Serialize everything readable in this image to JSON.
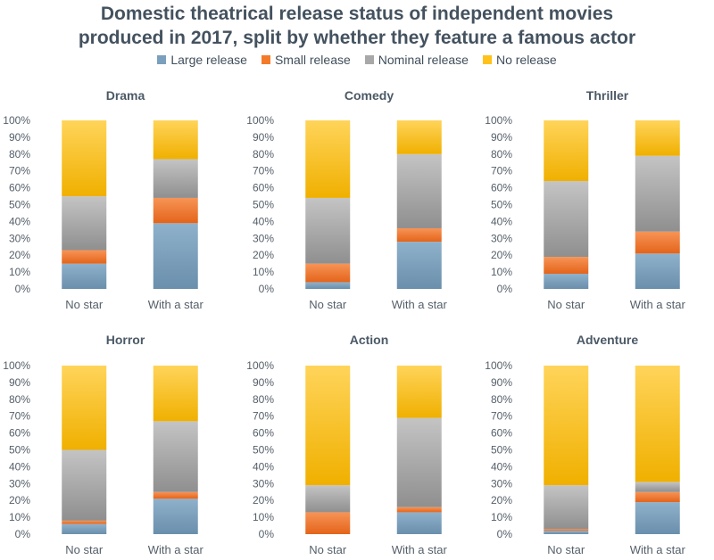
{
  "title_lines": [
    "Domestic theatrical release status of independent movies",
    "produced in 2017, split by whether they feature a famous actor"
  ],
  "legend": [
    {
      "label": "Large release",
      "color": "#7aa0bd"
    },
    {
      "label": "Small release",
      "color": "#f47a2a"
    },
    {
      "label": "Nominal release",
      "color": "#a8a8a8"
    },
    {
      "label": "No release",
      "color": "#ffc21a"
    }
  ],
  "chart_data": [
    {
      "type": "bar",
      "stacked": true,
      "title": "Drama",
      "categories": [
        "No star",
        "With a star"
      ],
      "yticks": [
        "0%",
        "10%",
        "20%",
        "30%",
        "40%",
        "50%",
        "60%",
        "70%",
        "80%",
        "90%",
        "100%"
      ],
      "ylim": [
        0,
        100
      ],
      "series": [
        {
          "name": "Large release",
          "values": [
            15,
            39
          ]
        },
        {
          "name": "Small release",
          "values": [
            8,
            15
          ]
        },
        {
          "name": "Nominal release",
          "values": [
            32,
            23
          ]
        },
        {
          "name": "No release",
          "values": [
            45,
            23
          ]
        }
      ]
    },
    {
      "type": "bar",
      "stacked": true,
      "title": "Comedy",
      "categories": [
        "No star",
        "With a star"
      ],
      "yticks": [
        "0%",
        "10%",
        "20%",
        "30%",
        "40%",
        "50%",
        "60%",
        "70%",
        "80%",
        "90%",
        "100%"
      ],
      "ylim": [
        0,
        100
      ],
      "series": [
        {
          "name": "Large release",
          "values": [
            4,
            28
          ]
        },
        {
          "name": "Small release",
          "values": [
            11,
            8
          ]
        },
        {
          "name": "Nominal release",
          "values": [
            39,
            44
          ]
        },
        {
          "name": "No release",
          "values": [
            46,
            20
          ]
        }
      ]
    },
    {
      "type": "bar",
      "stacked": true,
      "title": "Thriller",
      "categories": [
        "No star",
        "With a star"
      ],
      "yticks": [
        "0%",
        "10%",
        "20%",
        "30%",
        "40%",
        "50%",
        "60%",
        "70%",
        "80%",
        "90%",
        "100%"
      ],
      "ylim": [
        0,
        100
      ],
      "series": [
        {
          "name": "Large release",
          "values": [
            9,
            21
          ]
        },
        {
          "name": "Small release",
          "values": [
            10,
            13
          ]
        },
        {
          "name": "Nominal release",
          "values": [
            45,
            45
          ]
        },
        {
          "name": "No release",
          "values": [
            36,
            21
          ]
        }
      ]
    },
    {
      "type": "bar",
      "stacked": true,
      "title": "Horror",
      "categories": [
        "No star",
        "With a star"
      ],
      "yticks": [
        "0%",
        "10%",
        "20%",
        "30%",
        "40%",
        "50%",
        "60%",
        "70%",
        "80%",
        "90%",
        "100%"
      ],
      "ylim": [
        0,
        100
      ],
      "series": [
        {
          "name": "Large release",
          "values": [
            6,
            21
          ]
        },
        {
          "name": "Small release",
          "values": [
            2,
            4
          ]
        },
        {
          "name": "Nominal release",
          "values": [
            42,
            42
          ]
        },
        {
          "name": "No release",
          "values": [
            50,
            33
          ]
        }
      ]
    },
    {
      "type": "bar",
      "stacked": true,
      "title": "Action",
      "categories": [
        "No star",
        "With a star"
      ],
      "yticks": [
        "0%",
        "10%",
        "20%",
        "30%",
        "40%",
        "50%",
        "60%",
        "70%",
        "80%",
        "90%",
        "100%"
      ],
      "ylim": [
        0,
        100
      ],
      "series": [
        {
          "name": "Large release",
          "values": [
            0,
            13
          ]
        },
        {
          "name": "Small release",
          "values": [
            13,
            3
          ]
        },
        {
          "name": "Nominal release",
          "values": [
            16,
            53
          ]
        },
        {
          "name": "No release",
          "values": [
            71,
            31
          ]
        }
      ]
    },
    {
      "type": "bar",
      "stacked": true,
      "title": "Adventure",
      "categories": [
        "No star",
        "With a star"
      ],
      "yticks": [
        "0%",
        "10%",
        "20%",
        "30%",
        "40%",
        "50%",
        "60%",
        "70%",
        "80%",
        "90%",
        "100%"
      ],
      "ylim": [
        0,
        100
      ],
      "series": [
        {
          "name": "Large release",
          "values": [
            2,
            19
          ]
        },
        {
          "name": "Small release",
          "values": [
            1,
            6
          ]
        },
        {
          "name": "Nominal release",
          "values": [
            26,
            6
          ]
        },
        {
          "name": "No release",
          "values": [
            71,
            69
          ]
        }
      ]
    }
  ]
}
